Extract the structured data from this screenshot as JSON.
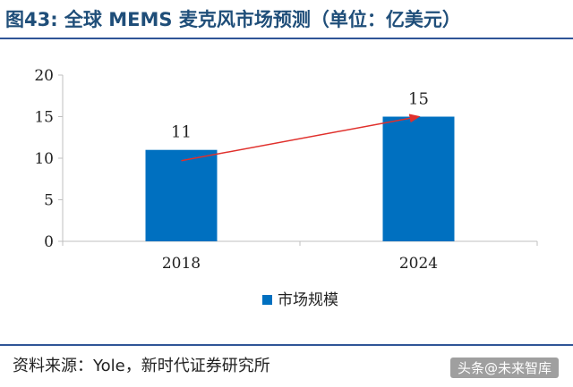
{
  "header": {
    "title": "图43:   全球 MEMS 麦克风市场预测（单位：亿美元）"
  },
  "footer": {
    "source": "资料来源：Yole，新时代证券研究所",
    "watermark": "头条@未来智库"
  },
  "colors": {
    "bar": "#0070C0",
    "axis": "#bfbfbf",
    "trend_arrow": "#e0302c",
    "title": "#1f4e79"
  },
  "chart_data": {
    "type": "bar",
    "title": "",
    "xlabel": "",
    "ylabel": "",
    "categories": [
      "2018",
      "2024"
    ],
    "series": [
      {
        "name": "市场规模",
        "values": [
          11,
          15
        ],
        "data_labels": [
          "11",
          "15"
        ]
      }
    ],
    "ylim": [
      0,
      20
    ],
    "yticks": [
      0,
      5,
      10,
      15,
      20
    ],
    "grid": false,
    "legend_position": "bottom-center",
    "annotations": [
      {
        "type": "arrow",
        "from": {
          "category": "2018",
          "y": 9.7
        },
        "to": {
          "category": "2024",
          "y": 15
        }
      }
    ]
  }
}
